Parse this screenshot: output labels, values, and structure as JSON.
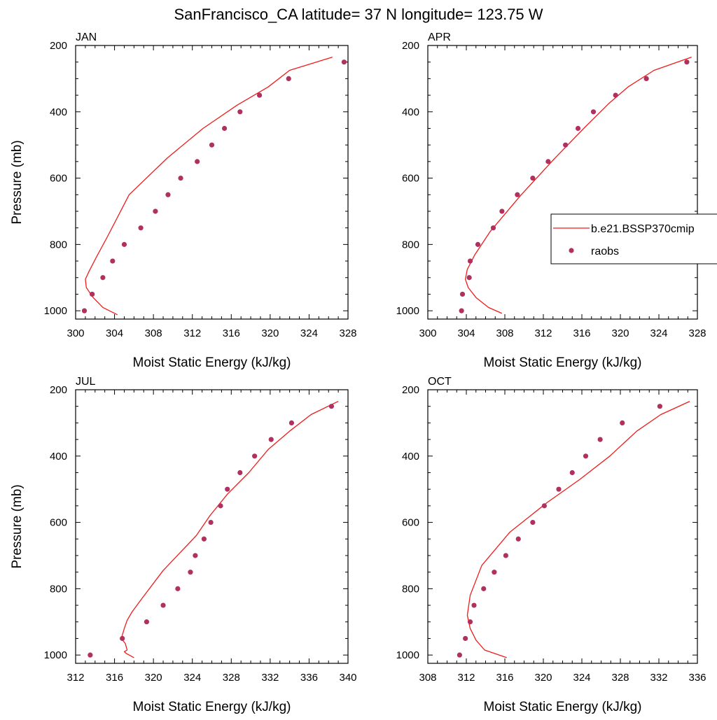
{
  "figure_title": "SanFrancisco_CA  latitude= 37 N longitude= 123.75 W",
  "legend": {
    "model_label": "b.e21.BSSP370cmip",
    "obs_label": "raobs"
  },
  "colors": {
    "model_line": "#ee1c1c",
    "obs_marker": "#b03060",
    "axes": "#000000"
  },
  "chart_data": [
    {
      "type": "line",
      "title": "JAN",
      "xlabel": "Moist Static Energy (kJ/kg)",
      "ylabel": "Pressure (mb)",
      "xlim": [
        300,
        328
      ],
      "ylim": [
        1025,
        200
      ],
      "y_inverted": true,
      "xticks": [
        300,
        304,
        308,
        312,
        316,
        320,
        324,
        328
      ],
      "yticks": [
        200,
        400,
        600,
        800,
        1000
      ],
      "series": [
        {
          "name": "b.e21.BSSP370cmip",
          "kind": "line",
          "x": [
            326.4,
            322.0,
            319.8,
            316.6,
            313.1,
            309.4,
            305.5,
            303.3,
            302.1,
            301.4,
            301.0,
            301.1,
            301.8,
            302.8,
            304.3
          ],
          "y": [
            235,
            275,
            325,
            380,
            450,
            540,
            650,
            775,
            840,
            880,
            905,
            930,
            960,
            990,
            1012
          ]
        },
        {
          "name": "raobs",
          "kind": "scatter",
          "x": [
            327.6,
            321.9,
            318.9,
            316.9,
            315.3,
            314.0,
            312.5,
            310.8,
            309.5,
            308.2,
            306.7,
            305.0,
            303.8,
            302.8,
            301.7,
            300.9
          ],
          "y": [
            250,
            300,
            350,
            400,
            450,
            500,
            550,
            600,
            650,
            700,
            750,
            800,
            850,
            900,
            950,
            1000
          ]
        }
      ]
    },
    {
      "type": "line",
      "title": "APR",
      "xlabel": "Moist Static Energy (kJ/kg)",
      "ylabel": "",
      "xlim": [
        300,
        328
      ],
      "ylim": [
        1025,
        200
      ],
      "y_inverted": true,
      "xticks": [
        300,
        304,
        308,
        312,
        316,
        320,
        324,
        328
      ],
      "yticks": [
        200,
        400,
        600,
        800,
        1000
      ],
      "series": [
        {
          "name": "b.e21.BSSP370cmip",
          "kind": "line",
          "x": [
            327.4,
            323.5,
            320.8,
            318.8,
            316.2,
            313.2,
            309.7,
            306.5,
            304.9,
            304.1,
            303.9,
            304.2,
            305.0,
            306.3,
            307.7
          ],
          "y": [
            235,
            275,
            325,
            375,
            450,
            540,
            650,
            760,
            830,
            875,
            905,
            930,
            960,
            990,
            1008
          ]
        },
        {
          "name": "raobs",
          "kind": "scatter",
          "x": [
            326.9,
            322.7,
            319.5,
            317.2,
            315.6,
            314.3,
            312.5,
            310.9,
            309.3,
            307.7,
            306.8,
            305.2,
            304.4,
            304.3,
            303.6,
            303.5
          ],
          "y": [
            250,
            300,
            350,
            400,
            450,
            500,
            550,
            600,
            650,
            700,
            750,
            800,
            850,
            900,
            950,
            1000
          ]
        }
      ]
    },
    {
      "type": "line",
      "title": "JUL",
      "xlabel": "Moist Static Energy (kJ/kg)",
      "ylabel": "Pressure (mb)",
      "xlim": [
        312,
        340
      ],
      "ylim": [
        1025,
        200
      ],
      "y_inverted": true,
      "xticks": [
        312,
        316,
        320,
        324,
        328,
        332,
        336,
        340
      ],
      "yticks": [
        200,
        400,
        600,
        800,
        1000
      ],
      "series": [
        {
          "name": "b.e21.BSSP370cmip",
          "kind": "line",
          "x": [
            339.0,
            336.2,
            334.0,
            331.8,
            329.8,
            327.6,
            325.8,
            324.4,
            321.0,
            318.8,
            317.8,
            317.3,
            317.0,
            316.7,
            317.1,
            317.3,
            317.0,
            317.2,
            318.0
          ],
          "y": [
            235,
            275,
            325,
            380,
            450,
            515,
            580,
            640,
            745,
            830,
            870,
            895,
            920,
            950,
            965,
            985,
            990,
            995,
            1008
          ]
        },
        {
          "name": "raobs",
          "kind": "scatter",
          "x": [
            338.3,
            334.2,
            332.1,
            330.4,
            328.9,
            327.6,
            326.9,
            325.9,
            325.2,
            324.3,
            323.8,
            322.5,
            321.0,
            319.3,
            316.8,
            313.5
          ],
          "y": [
            250,
            300,
            350,
            400,
            450,
            500,
            550,
            600,
            650,
            700,
            750,
            800,
            850,
            900,
            950,
            1000
          ]
        }
      ]
    },
    {
      "type": "line",
      "title": "OCT",
      "xlabel": "Moist Static Energy (kJ/kg)",
      "ylabel": "",
      "xlim": [
        308,
        336
      ],
      "ylim": [
        1025,
        200
      ],
      "y_inverted": true,
      "xticks": [
        308,
        312,
        316,
        320,
        324,
        328,
        332,
        336
      ],
      "yticks": [
        200,
        400,
        600,
        800,
        1000
      ],
      "series": [
        {
          "name": "b.e21.BSSP370cmip",
          "kind": "line",
          "x": [
            335.2,
            332.2,
            329.7,
            326.9,
            323.8,
            320.4,
            316.5,
            313.6,
            312.4,
            312.1,
            312.4,
            313.0,
            313.9,
            316.2
          ],
          "y": [
            235,
            275,
            325,
            400,
            470,
            540,
            630,
            730,
            820,
            880,
            920,
            955,
            985,
            1008
          ]
        },
        {
          "name": "raobs",
          "kind": "scatter",
          "x": [
            332.1,
            328.2,
            325.9,
            324.4,
            323.0,
            321.6,
            320.1,
            318.9,
            317.4,
            316.1,
            314.9,
            313.8,
            312.8,
            312.4,
            311.9,
            311.3
          ],
          "y": [
            250,
            300,
            350,
            400,
            450,
            500,
            550,
            600,
            650,
            700,
            750,
            800,
            850,
            900,
            950,
            1000
          ]
        }
      ]
    }
  ]
}
